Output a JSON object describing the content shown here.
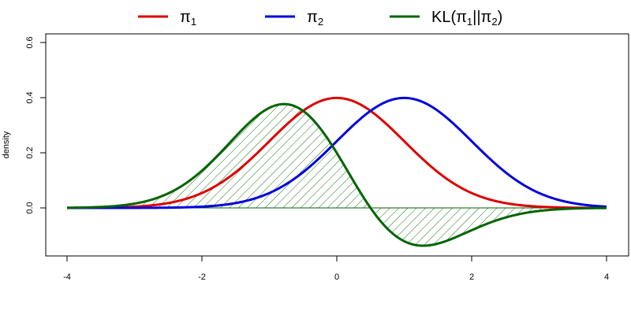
{
  "chart_data": {
    "type": "line",
    "xlabel": "",
    "ylabel": "density",
    "xlim": [
      -4.2,
      4.35
    ],
    "ylim": [
      -0.175,
      0.63
    ],
    "x_ticks": [
      "-4",
      "-2",
      "0",
      "2",
      "4"
    ],
    "y_ticks": [
      "0.0",
      "0.2",
      "0.4",
      "0.6"
    ],
    "x_tick_values": [
      -4,
      -2,
      0,
      2,
      4
    ],
    "y_tick_values": [
      0.0,
      0.2,
      0.4,
      0.6
    ],
    "legend": {
      "placement": "top",
      "entries": [
        {
          "name": "π",
          "sub": "1",
          "color": "#dd0000"
        },
        {
          "name": "π",
          "sub": "2",
          "color": "#0000dd"
        },
        {
          "name": "KL(π",
          "sub": "1",
          "mid": "||π",
          "sub2": "2",
          "end": ")",
          "color": "#006400"
        }
      ]
    },
    "series": [
      {
        "name": "π1",
        "color": "#dd0000",
        "distribution": "normal",
        "mean": 0,
        "sd": 1,
        "x": [
          -4,
          -3,
          -2,
          -1,
          0,
          1,
          2,
          3,
          4
        ],
        "y": [
          0.0001,
          0.0044,
          0.054,
          0.242,
          0.399,
          0.242,
          0.054,
          0.0044,
          0.0001
        ]
      },
      {
        "name": "π2",
        "color": "#0000dd",
        "distribution": "normal",
        "mean": 1,
        "sd": 1,
        "x": [
          -4,
          -3,
          -2,
          -1,
          0,
          1,
          2,
          3,
          4
        ],
        "y": [
          0.0,
          0.0001,
          0.0044,
          0.054,
          0.242,
          0.399,
          0.242,
          0.054,
          0.0044
        ]
      },
      {
        "name": "KL(π1||π2)",
        "color": "#006400",
        "formula": "π1(x) * (0.5 - x)",
        "hatched": true,
        "x": [
          -4,
          -3,
          -2,
          -1,
          0,
          0.5,
          1,
          2,
          3,
          4
        ],
        "y": [
          0.0006,
          0.0155,
          0.135,
          0.363,
          0.199,
          0.0,
          -0.121,
          -0.081,
          -0.011,
          -0.0005
        ]
      }
    ],
    "grid": false
  }
}
